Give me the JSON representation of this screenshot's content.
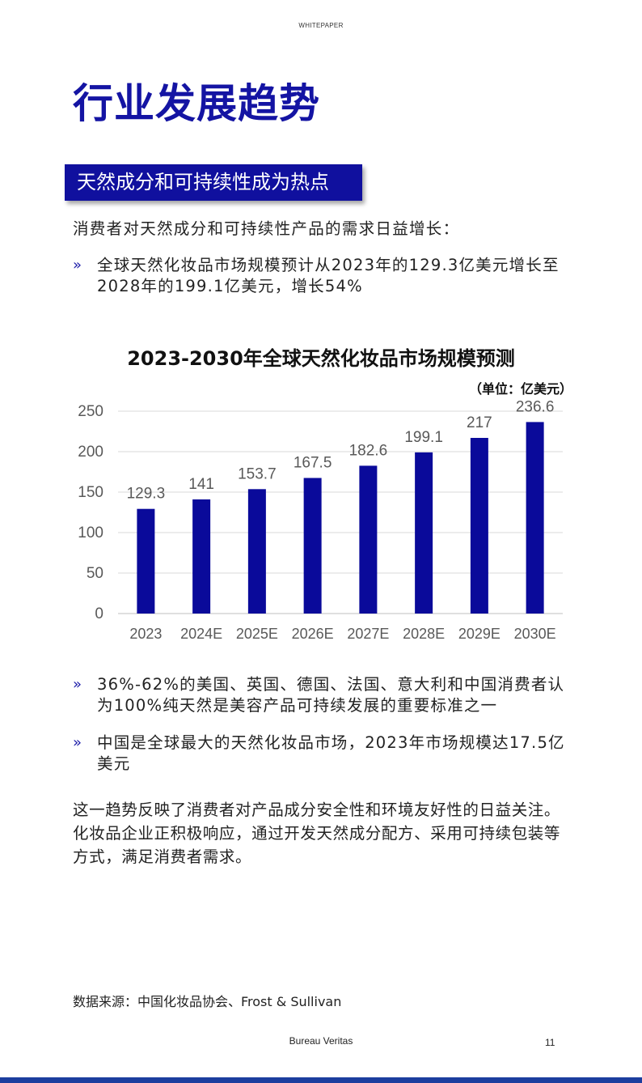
{
  "header": {
    "tag": "WHITEPAPER"
  },
  "page_title": "行业发展趋势",
  "section": {
    "title": "天然成分和可持续性成为热点"
  },
  "intro": "消费者对天然成分和可持续性产品的需求日益增长：",
  "bullet_mark": "»",
  "bullets_top": [
    "全球天然化妆品市场规模预计从2023年的129.3亿美元增长至2028年的199.1亿美元，增长54%"
  ],
  "bullets_bottom": [
    "36%-62%的美国、英国、德国、法国、意大利和中国消费者认为100%纯天然是美容产品可持续发展的重要标准之一",
    "中国是全球最大的天然化妆品市场，2023年市场规模达17.5亿美元"
  ],
  "closing": "这一趋势反映了消费者对产品成分安全性和环境友好性的日益关注。化妆品企业正积极响应，通过开发天然成分配方、采用可持续包装等方式，满足消费者需求。",
  "source": "数据来源：中国化妆品协会、Frost & Sullivan",
  "footer": {
    "brand": "Bureau Veritas",
    "page_number": "11"
  },
  "colors": {
    "accent": "#1414a3",
    "bar": "#0a0a9a",
    "footer_bar": "#1c3e9e"
  },
  "chart_data": {
    "type": "bar",
    "title": "2023-2030年全球天然化妆品市场规模预测",
    "unit_label": "（单位：亿美元）",
    "categories": [
      "2023",
      "2024E",
      "2025E",
      "2026E",
      "2027E",
      "2028E",
      "2029E",
      "2030E"
    ],
    "values": [
      129.3,
      141,
      153.7,
      167.5,
      182.6,
      199.1,
      217,
      236.6
    ],
    "value_labels": [
      "129.3",
      "141",
      "153.7",
      "167.5",
      "182.6",
      "199.1",
      "217",
      "236.6"
    ],
    "ylim": [
      0,
      250
    ],
    "yticks": [
      0,
      50,
      100,
      150,
      200,
      250
    ],
    "grid": true,
    "legend": "none"
  }
}
